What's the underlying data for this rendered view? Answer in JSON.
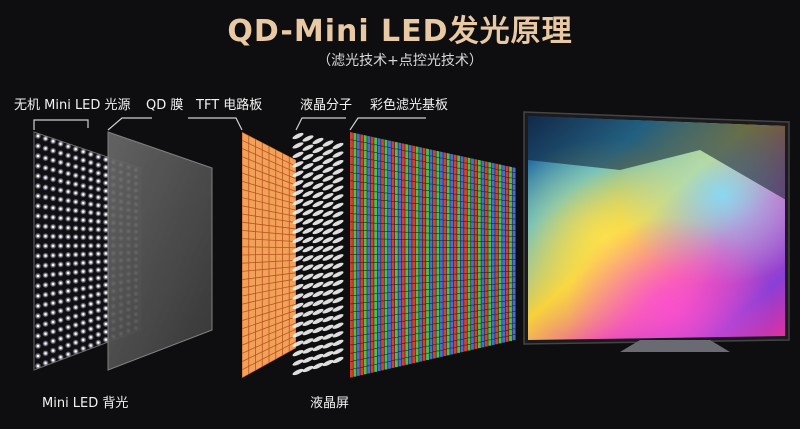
{
  "title": "QD-Mini LED发光原理",
  "subtitle": "（滤光技术+点控光技术）",
  "layers": {
    "backlight_leds": "无机 Mini LED 光源",
    "qd_film": "QD 膜",
    "tft_board": "TFT 电路板",
    "liquid_crystal": "液晶分子",
    "color_filter": "彩色滤光基板"
  },
  "groups": {
    "mini_led_backlight": "Mini LED 背光",
    "lcd_panel": "液晶屏"
  },
  "colors": {
    "title": "#e8c9a4",
    "led_glow": "#ffffff",
    "qd_film": "#5a5a5a",
    "tft": "#f39a4c",
    "filter_red": "#d8402c",
    "filter_green": "#4cc24a",
    "filter_blue": "#4a6cd8"
  }
}
